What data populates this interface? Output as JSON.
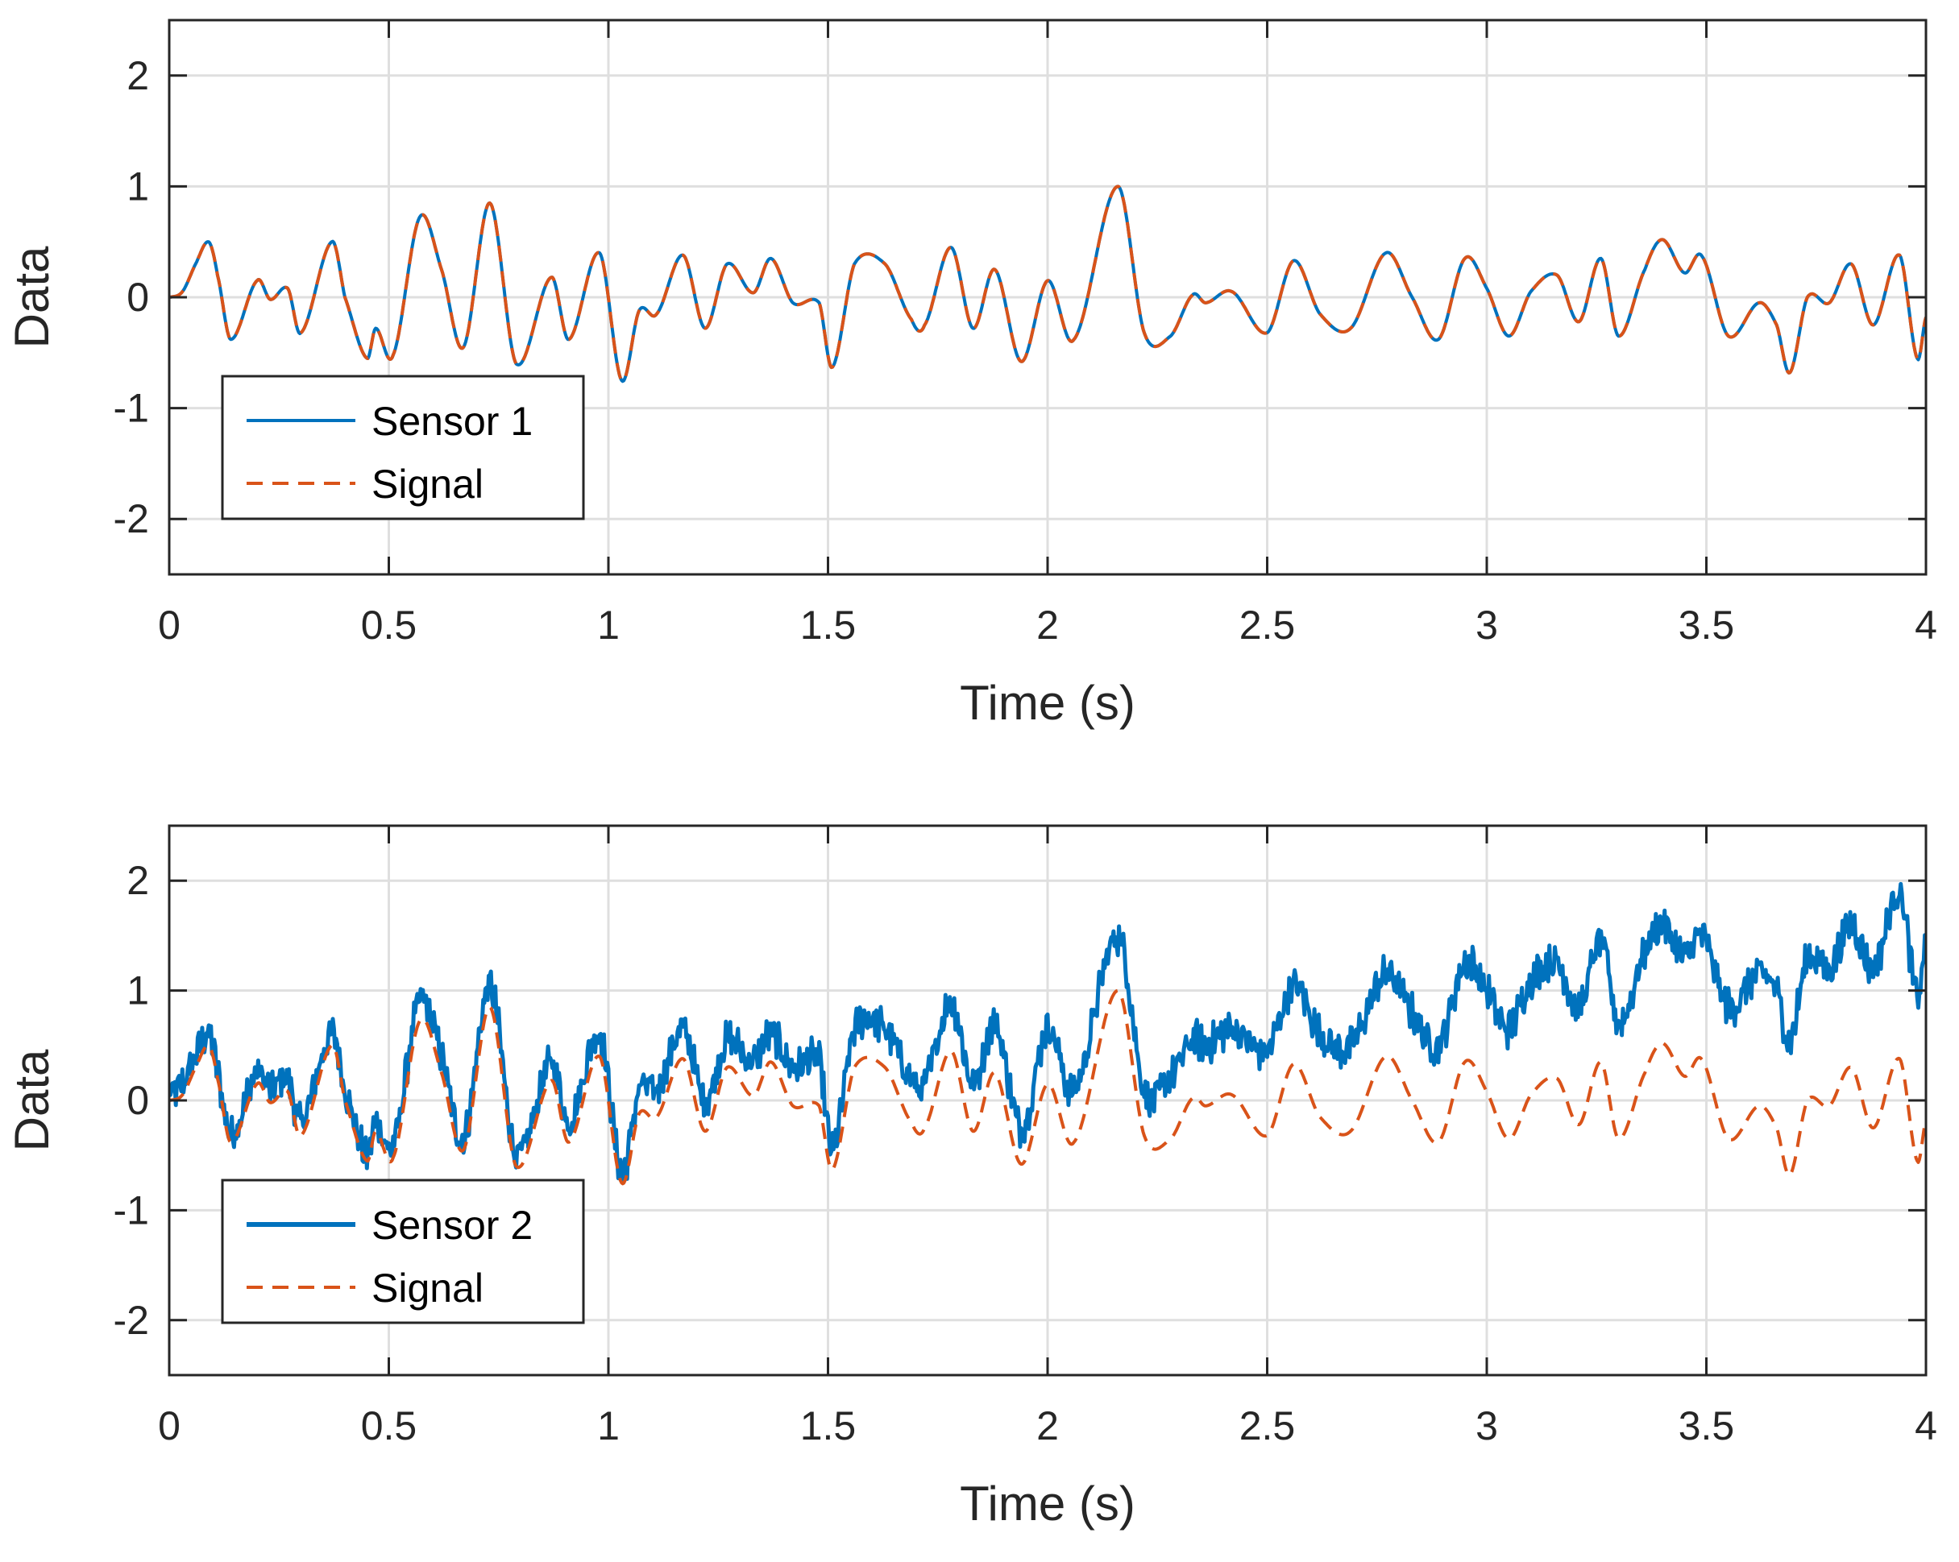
{
  "colors": {
    "sensor": "#0072BD",
    "signal": "#D95319"
  },
  "chart_data": [
    {
      "type": "line",
      "title": "",
      "xlabel": "Time (s)",
      "ylabel": "Data",
      "xlim": [
        0,
        4
      ],
      "ylim": [
        -2.5,
        2.5
      ],
      "xticks": [
        0,
        0.5,
        1,
        1.5,
        2,
        2.5,
        3,
        3.5,
        4
      ],
      "xticklabels": [
        "0",
        "0.5",
        "1",
        "1.5",
        "2",
        "2.5",
        "3",
        "3.5",
        "4"
      ],
      "yticks": [
        -2,
        -1,
        0,
        1,
        2
      ],
      "yticklabels": [
        "-2",
        "-1",
        "0",
        "1",
        "2"
      ],
      "grid": true,
      "legend_location": "bottom-left",
      "series": [
        {
          "name": "Sensor 1",
          "style": "solid",
          "x": [
            0,
            0.03,
            0.06,
            0.09,
            0.11,
            0.14,
            0.2,
            0.23,
            0.27,
            0.3,
            0.37,
            0.4,
            0.45,
            0.47,
            0.51,
            0.57,
            0.62,
            0.67,
            0.73,
            0.79,
            0.87,
            0.91,
            0.98,
            1.03,
            1.07,
            1.11,
            1.17,
            1.22,
            1.27,
            1.33,
            1.37,
            1.42,
            1.48,
            1.51,
            1.56,
            1.63,
            1.69,
            1.72,
            1.78,
            1.83,
            1.88,
            1.94,
            2.0,
            2.06,
            2.16,
            2.22,
            2.28,
            2.33,
            2.36,
            2.42,
            2.5,
            2.56,
            2.62,
            2.69,
            2.77,
            2.83,
            2.89,
            2.95,
            3.0,
            3.05,
            3.1,
            3.16,
            3.21,
            3.26,
            3.3,
            3.36,
            3.4,
            3.45,
            3.49,
            3.55,
            3.62,
            3.66,
            3.69,
            3.73,
            3.78,
            3.83,
            3.88,
            3.94,
            3.98,
            4.0
          ],
          "y": [
            0,
            0.05,
            0.3,
            0.5,
            0.2,
            -0.38,
            0.15,
            -0.02,
            0.08,
            -0.32,
            0.5,
            0.0,
            -0.55,
            -0.28,
            -0.52,
            0.72,
            0.25,
            -0.45,
            0.85,
            -0.6,
            0.18,
            -0.38,
            0.4,
            -0.75,
            -0.12,
            -0.15,
            0.38,
            -0.28,
            0.3,
            0.04,
            0.35,
            -0.05,
            -0.05,
            -0.63,
            0.3,
            0.3,
            -0.2,
            -0.25,
            0.45,
            -0.28,
            0.25,
            -0.58,
            0.15,
            -0.38,
            1.0,
            -0.32,
            -0.35,
            0.02,
            -0.05,
            0.05,
            -0.32,
            0.33,
            -0.15,
            -0.28,
            0.4,
            0.0,
            -0.38,
            0.35,
            0.08,
            -0.35,
            0.05,
            0.2,
            -0.22,
            0.35,
            -0.35,
            0.25,
            0.52,
            0.22,
            0.37,
            -0.35,
            -0.05,
            -0.25,
            -0.68,
            0.0,
            -0.05,
            0.3,
            -0.25,
            0.38,
            -0.55,
            -0.18
          ]
        },
        {
          "name": "Signal",
          "style": "dashed",
          "x": [
            0,
            0.03,
            0.06,
            0.09,
            0.11,
            0.14,
            0.2,
            0.23,
            0.27,
            0.3,
            0.37,
            0.4,
            0.45,
            0.47,
            0.51,
            0.57,
            0.62,
            0.67,
            0.73,
            0.79,
            0.87,
            0.91,
            0.98,
            1.03,
            1.07,
            1.11,
            1.17,
            1.22,
            1.27,
            1.33,
            1.37,
            1.42,
            1.48,
            1.51,
            1.56,
            1.63,
            1.69,
            1.72,
            1.78,
            1.83,
            1.88,
            1.94,
            2.0,
            2.06,
            2.16,
            2.22,
            2.28,
            2.33,
            2.36,
            2.42,
            2.5,
            2.56,
            2.62,
            2.69,
            2.77,
            2.83,
            2.89,
            2.95,
            3.0,
            3.05,
            3.1,
            3.16,
            3.21,
            3.26,
            3.3,
            3.36,
            3.4,
            3.45,
            3.49,
            3.55,
            3.62,
            3.66,
            3.69,
            3.73,
            3.78,
            3.83,
            3.88,
            3.94,
            3.98,
            4.0
          ],
          "y": [
            0,
            0.05,
            0.3,
            0.5,
            0.2,
            -0.38,
            0.15,
            -0.02,
            0.08,
            -0.32,
            0.5,
            0.0,
            -0.55,
            -0.28,
            -0.52,
            0.72,
            0.25,
            -0.45,
            0.85,
            -0.6,
            0.18,
            -0.38,
            0.4,
            -0.75,
            -0.12,
            -0.15,
            0.38,
            -0.28,
            0.3,
            0.04,
            0.35,
            -0.05,
            -0.05,
            -0.63,
            0.3,
            0.3,
            -0.2,
            -0.25,
            0.45,
            -0.28,
            0.25,
            -0.58,
            0.15,
            -0.38,
            1.0,
            -0.32,
            -0.35,
            0.02,
            -0.05,
            0.05,
            -0.32,
            0.33,
            -0.15,
            -0.28,
            0.4,
            0.0,
            -0.38,
            0.35,
            0.08,
            -0.35,
            0.05,
            0.2,
            -0.22,
            0.35,
            -0.35,
            0.25,
            0.52,
            0.22,
            0.37,
            -0.35,
            -0.05,
            -0.25,
            -0.68,
            0.0,
            -0.05,
            0.3,
            -0.25,
            0.38,
            -0.55,
            -0.18
          ]
        }
      ]
    },
    {
      "type": "line",
      "title": "",
      "xlabel": "Time (s)",
      "ylabel": "Data",
      "xlim": [
        0,
        4
      ],
      "ylim": [
        -2.5,
        2.5
      ],
      "xticks": [
        0,
        0.5,
        1,
        1.5,
        2,
        2.5,
        3,
        3.5,
        4
      ],
      "xticklabels": [
        "0",
        "0.5",
        "1",
        "1.5",
        "2",
        "2.5",
        "3",
        "3.5",
        "4"
      ],
      "yticks": [
        -2,
        -1,
        0,
        1,
        2
      ],
      "yticklabels": [
        "-2",
        "-1",
        "0",
        "1",
        "2"
      ],
      "grid": true,
      "legend_location": "bottom-left",
      "series": [
        {
          "name": "Sensor 2",
          "style": "solid-noisy",
          "x": [
            0,
            0.03,
            0.06,
            0.09,
            0.11,
            0.14,
            0.2,
            0.23,
            0.27,
            0.3,
            0.37,
            0.4,
            0.45,
            0.47,
            0.51,
            0.57,
            0.62,
            0.67,
            0.73,
            0.79,
            0.87,
            0.91,
            0.98,
            1.03,
            1.07,
            1.11,
            1.17,
            1.22,
            1.27,
            1.33,
            1.37,
            1.42,
            1.48,
            1.51,
            1.56,
            1.63,
            1.69,
            1.72,
            1.78,
            1.83,
            1.88,
            1.94,
            2.0,
            2.06,
            2.16,
            2.22,
            2.28,
            2.33,
            2.36,
            2.42,
            2.5,
            2.56,
            2.62,
            2.69,
            2.77,
            2.83,
            2.89,
            2.95,
            3.0,
            3.05,
            3.1,
            3.16,
            3.21,
            3.26,
            3.3,
            3.36,
            3.4,
            3.45,
            3.49,
            3.55,
            3.62,
            3.66,
            3.69,
            3.73,
            3.78,
            3.83,
            3.88,
            3.94,
            3.98,
            4.0
          ],
          "y": [
            0.05,
            0.15,
            0.4,
            0.6,
            0.25,
            -0.3,
            0.25,
            0.1,
            0.2,
            -0.2,
            0.6,
            0.1,
            -0.5,
            -0.2,
            -0.4,
            0.9,
            0.4,
            -0.35,
            1.05,
            -0.5,
            0.35,
            -0.2,
            0.6,
            -0.65,
            0.1,
            0.1,
            0.65,
            0.0,
            0.55,
            0.35,
            0.6,
            0.3,
            0.35,
            -0.45,
            0.65,
            0.65,
            0.2,
            0.15,
            0.9,
            0.15,
            0.7,
            -0.25,
            0.65,
            0.1,
            1.5,
            0.1,
            0.2,
            0.55,
            0.5,
            0.65,
            0.45,
            1.05,
            0.6,
            0.5,
            1.15,
            0.8,
            0.5,
            1.25,
            1.0,
            0.65,
            1.1,
            1.25,
            0.85,
            1.45,
            0.7,
            1.35,
            1.6,
            1.3,
            1.5,
            0.85,
            1.15,
            1.0,
            0.55,
            1.3,
            1.2,
            1.6,
            1.2,
            1.9,
            0.95,
            1.45
          ]
        },
        {
          "name": "Signal",
          "style": "dashed",
          "x": [
            0,
            0.03,
            0.06,
            0.09,
            0.11,
            0.14,
            0.2,
            0.23,
            0.27,
            0.3,
            0.37,
            0.4,
            0.45,
            0.47,
            0.51,
            0.57,
            0.62,
            0.67,
            0.73,
            0.79,
            0.87,
            0.91,
            0.98,
            1.03,
            1.07,
            1.11,
            1.17,
            1.22,
            1.27,
            1.33,
            1.37,
            1.42,
            1.48,
            1.51,
            1.56,
            1.63,
            1.69,
            1.72,
            1.78,
            1.83,
            1.88,
            1.94,
            2.0,
            2.06,
            2.16,
            2.22,
            2.28,
            2.33,
            2.36,
            2.42,
            2.5,
            2.56,
            2.62,
            2.69,
            2.77,
            2.83,
            2.89,
            2.95,
            3.0,
            3.05,
            3.1,
            3.16,
            3.21,
            3.26,
            3.3,
            3.36,
            3.4,
            3.45,
            3.49,
            3.55,
            3.62,
            3.66,
            3.69,
            3.73,
            3.78,
            3.83,
            3.88,
            3.94,
            3.98,
            4.0
          ],
          "y": [
            0,
            0.05,
            0.3,
            0.5,
            0.2,
            -0.38,
            0.15,
            -0.02,
            0.08,
            -0.32,
            0.5,
            0.0,
            -0.55,
            -0.28,
            -0.52,
            0.72,
            0.25,
            -0.45,
            0.85,
            -0.6,
            0.18,
            -0.38,
            0.4,
            -0.75,
            -0.12,
            -0.15,
            0.38,
            -0.28,
            0.3,
            0.04,
            0.35,
            -0.05,
            -0.05,
            -0.63,
            0.3,
            0.3,
            -0.2,
            -0.25,
            0.45,
            -0.28,
            0.25,
            -0.58,
            0.15,
            -0.38,
            1.0,
            -0.32,
            -0.35,
            0.02,
            -0.05,
            0.05,
            -0.32,
            0.33,
            -0.15,
            -0.28,
            0.4,
            0.0,
            -0.38,
            0.35,
            0.08,
            -0.35,
            0.05,
            0.2,
            -0.22,
            0.35,
            -0.35,
            0.25,
            0.52,
            0.22,
            0.37,
            -0.35,
            -0.05,
            -0.25,
            -0.68,
            0.0,
            -0.05,
            0.3,
            -0.25,
            0.38,
            -0.55,
            -0.18
          ]
        }
      ]
    }
  ]
}
